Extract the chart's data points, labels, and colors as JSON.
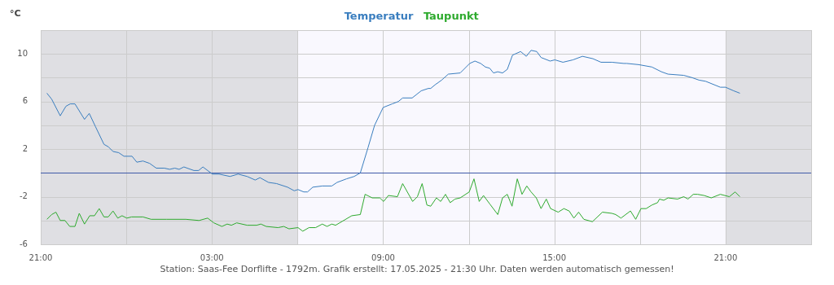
{
  "chart_data": {
    "type": "line",
    "ylabel": "°C",
    "annotations": [
      "Station: Saas-Fee Dorflifte - 1792m. Grafik erstellt: 17.05.2025 - 21:30 Uhr. Daten werden automatisch gemessen!"
    ],
    "xlim": [
      "2025-05-16T21:00",
      "2025-05-18T00:00"
    ],
    "xticks": [
      {
        "value": "2025-05-16T21:00",
        "label": "21:00"
      },
      {
        "value": "2025-05-17T00:00",
        "label": null
      },
      {
        "value": "2025-05-17T03:00",
        "label": "03:00"
      },
      {
        "value": "2025-05-17T06:00",
        "label": null
      },
      {
        "value": "2025-05-17T09:00",
        "label": "09:00"
      },
      {
        "value": "2025-05-17T12:00",
        "label": null
      },
      {
        "value": "2025-05-17T15:00",
        "label": "15:00"
      },
      {
        "value": "2025-05-17T18:00",
        "label": null
      },
      {
        "value": "2025-05-17T21:00",
        "label": "21:00"
      },
      {
        "value": "2025-05-18T00:00",
        "label": null
      }
    ],
    "ylim": [
      -6,
      12
    ],
    "yticks": [
      -6,
      {
        "value": -4,
        "label": null
      },
      -2,
      {
        "value": 0,
        "label": null
      },
      2,
      {
        "value": 4,
        "label": null
      },
      6,
      {
        "value": 8,
        "label": null
      },
      10,
      {
        "value": 12,
        "label": null
      }
    ],
    "grid": true,
    "legend": "top",
    "marker": "none",
    "line_style": "solid",
    "bands": [
      {
        "axis": "x",
        "from": "2025-05-16T21:00",
        "to": "2025-05-17T06:00",
        "color": "#dfdfe3"
      },
      {
        "axis": "x",
        "from": "2025-05-17T06:00",
        "to": "2025-05-17T21:00",
        "color": "#f9f8fe"
      },
      {
        "axis": "x",
        "from": "2025-05-17T21:00",
        "to": "2025-05-18T00:00",
        "color": "#dfdfe3"
      }
    ],
    "ref_lines": [
      {
        "axis": "y",
        "value": 0,
        "color": "#3f5aa8"
      }
    ],
    "series": [
      {
        "name": "Temperatur",
        "color": "#3a7ebf",
        "x": [
          "2025-05-16T21:13",
          "2025-05-16T21:23",
          "2025-05-16T21:41",
          "2025-05-16T21:53",
          "2025-05-16T22:02",
          "2025-05-16T22:12",
          "2025-05-16T22:32",
          "2025-05-16T22:42",
          "2025-05-16T22:55",
          "2025-05-16T23:13",
          "2025-05-16T23:22",
          "2025-05-16T23:32",
          "2025-05-16T23:44",
          "2025-05-16T23:55",
          "2025-05-17T00:12",
          "2025-05-17T00:22",
          "2025-05-17T00:35",
          "2025-05-17T00:49",
          "2025-05-17T01:03",
          "2025-05-17T01:20",
          "2025-05-17T01:31",
          "2025-05-17T01:42",
          "2025-05-17T01:51",
          "2025-05-17T02:01",
          "2025-05-17T02:22",
          "2025-05-17T02:32",
          "2025-05-17T02:41",
          "2025-05-17T02:51",
          "2025-05-17T03:01",
          "2025-05-17T03:15",
          "2025-05-17T03:38",
          "2025-05-17T03:55",
          "2025-05-17T04:14",
          "2025-05-17T04:31",
          "2025-05-17T04:41",
          "2025-05-17T04:59",
          "2025-05-17T05:16",
          "2025-05-17T05:39",
          "2025-05-17T05:53",
          "2025-05-17T06:01",
          "2025-05-17T06:13",
          "2025-05-17T06:21",
          "2025-05-17T06:32",
          "2025-05-17T06:52",
          "2025-05-17T07:12",
          "2025-05-17T07:23",
          "2025-05-17T07:43",
          "2025-05-17T07:59",
          "2025-05-17T08:12",
          "2025-05-17T08:28",
          "2025-05-17T08:42",
          "2025-05-17T09:00",
          "2025-05-17T09:19",
          "2025-05-17T09:32",
          "2025-05-17T09:41",
          "2025-05-17T10:01",
          "2025-05-17T10:20",
          "2025-05-17T10:35",
          "2025-05-17T10:40",
          "2025-05-17T10:49",
          "2025-05-17T11:03",
          "2025-05-17T11:17",
          "2025-05-17T11:42",
          "2025-05-17T12:02",
          "2025-05-17T12:13",
          "2025-05-17T12:25",
          "2025-05-17T12:35",
          "2025-05-17T12:44",
          "2025-05-17T12:52",
          "2025-05-17T13:01",
          "2025-05-17T13:11",
          "2025-05-17T13:21",
          "2025-05-17T13:32",
          "2025-05-17T13:49",
          "2025-05-17T14:01",
          "2025-05-17T14:11",
          "2025-05-17T14:23",
          "2025-05-17T14:32",
          "2025-05-17T14:51",
          "2025-05-17T15:01",
          "2025-05-17T15:18",
          "2025-05-17T15:39",
          "2025-05-17T15:59",
          "2025-05-17T16:21",
          "2025-05-17T16:38",
          "2025-05-17T17:01",
          "2025-05-17T17:26",
          "2025-05-17T17:32",
          "2025-05-17T17:57",
          "2025-05-17T18:25",
          "2025-05-17T18:45",
          "2025-05-17T18:59",
          "2025-05-17T19:32",
          "2025-05-17T19:50",
          "2025-05-17T20:04",
          "2025-05-17T20:18",
          "2025-05-17T20:49",
          "2025-05-17T21:00",
          "2025-05-17T21:17",
          "2025-05-17T21:30"
        ],
        "values": [
          6.7,
          6.2,
          4.8,
          5.6,
          5.8,
          5.8,
          4.5,
          5.0,
          3.9,
          2.4,
          2.2,
          1.8,
          1.7,
          1.4,
          1.4,
          0.9,
          1.0,
          0.8,
          0.4,
          0.4,
          0.3,
          0.4,
          0.3,
          0.5,
          0.2,
          0.2,
          0.5,
          0.2,
          -0.1,
          -0.1,
          -0.3,
          -0.1,
          -0.3,
          -0.6,
          -0.4,
          -0.8,
          -0.9,
          -1.2,
          -1.5,
          -1.4,
          -1.6,
          -1.6,
          -1.2,
          -1.1,
          -1.1,
          -0.8,
          -0.5,
          -0.3,
          0.0,
          2.1,
          4.0,
          5.5,
          5.8,
          6.0,
          6.3,
          6.3,
          6.9,
          7.1,
          7.1,
          7.4,
          7.8,
          8.3,
          8.4,
          9.2,
          9.4,
          9.2,
          8.9,
          8.8,
          8.4,
          8.5,
          8.4,
          8.7,
          9.9,
          10.2,
          9.8,
          10.3,
          10.2,
          9.7,
          9.4,
          9.5,
          9.3,
          9.5,
          9.8,
          9.6,
          9.3,
          9.3,
          9.2,
          9.2,
          9.1,
          8.9,
          8.5,
          8.3,
          8.2,
          8.0,
          7.8,
          7.7,
          7.2,
          7.2,
          6.9,
          6.7
        ]
      },
      {
        "name": "Taupunkt",
        "color": "#2eaa2e",
        "x": [
          "2025-05-16T21:13",
          "2025-05-16T21:23",
          "2025-05-16T21:32",
          "2025-05-16T21:41",
          "2025-05-16T21:51",
          "2025-05-16T22:01",
          "2025-05-16T22:12",
          "2025-05-16T22:21",
          "2025-05-16T22:32",
          "2025-05-16T22:43",
          "2025-05-16T22:53",
          "2025-05-16T23:03",
          "2025-05-16T23:13",
          "2025-05-16T23:22",
          "2025-05-16T23:32",
          "2025-05-16T23:42",
          "2025-05-16T23:51",
          "2025-05-17T00:01",
          "2025-05-17T00:11",
          "2025-05-17T00:35",
          "2025-05-17T00:52",
          "2025-05-17T01:25",
          "2025-05-17T02:05",
          "2025-05-17T02:33",
          "2025-05-17T02:51",
          "2025-05-17T03:04",
          "2025-05-17T03:21",
          "2025-05-17T03:32",
          "2025-05-17T03:41",
          "2025-05-17T03:52",
          "2025-05-17T04:14",
          "2025-05-17T04:34",
          "2025-05-17T04:43",
          "2025-05-17T04:54",
          "2025-05-17T05:19",
          "2025-05-17T05:31",
          "2025-05-17T05:42",
          "2025-05-17T06:01",
          "2025-05-17T06:11",
          "2025-05-17T06:24",
          "2025-05-17T06:38",
          "2025-05-17T06:52",
          "2025-05-17T07:02",
          "2025-05-17T07:12",
          "2025-05-17T07:20",
          "2025-05-17T07:37",
          "2025-05-17T07:54",
          "2025-05-17T08:12",
          "2025-05-17T08:22",
          "2025-05-17T08:37",
          "2025-05-17T08:53",
          "2025-05-17T09:01",
          "2025-05-17T09:11",
          "2025-05-17T09:30",
          "2025-05-17T09:41",
          "2025-05-17T10:02",
          "2025-05-17T10:12",
          "2025-05-17T10:22",
          "2025-05-17T10:32",
          "2025-05-17T10:40",
          "2025-05-17T10:52",
          "2025-05-17T11:01",
          "2025-05-17T11:11",
          "2025-05-17T11:21",
          "2025-05-17T11:31",
          "2025-05-17T11:42",
          "2025-05-17T12:01",
          "2025-05-17T12:11",
          "2025-05-17T12:22",
          "2025-05-17T12:31",
          "2025-05-17T12:44",
          "2025-05-17T13:01",
          "2025-05-17T13:11",
          "2025-05-17T13:21",
          "2025-05-17T13:31",
          "2025-05-17T13:42",
          "2025-05-17T13:52",
          "2025-05-17T14:02",
          "2025-05-17T14:11",
          "2025-05-17T14:22",
          "2025-05-17T14:32",
          "2025-05-17T14:43",
          "2025-05-17T14:52",
          "2025-05-17T15:08",
          "2025-05-17T15:20",
          "2025-05-17T15:31",
          "2025-05-17T15:41",
          "2025-05-17T15:51",
          "2025-05-17T16:02",
          "2025-05-17T16:20",
          "2025-05-17T16:41",
          "2025-05-17T17:01",
          "2025-05-17T17:09",
          "2025-05-17T17:20",
          "2025-05-17T17:40",
          "2025-05-17T17:51",
          "2025-05-17T18:02",
          "2025-05-17T18:13",
          "2025-05-17T18:25",
          "2025-05-17T18:37",
          "2025-05-17T18:41",
          "2025-05-17T18:50",
          "2025-05-17T18:59",
          "2025-05-17T19:19",
          "2025-05-17T19:32",
          "2025-05-17T19:41",
          "2025-05-17T19:52",
          "2025-05-17T20:01",
          "2025-05-17T20:15",
          "2025-05-17T20:30",
          "2025-05-17T20:49",
          "2025-05-17T21:08",
          "2025-05-17T21:20",
          "2025-05-17T21:30"
        ],
        "values": [
          -3.9,
          -3.5,
          -3.3,
          -4.0,
          -4.0,
          -4.5,
          -4.5,
          -3.4,
          -4.3,
          -3.6,
          -3.6,
          -3.0,
          -3.7,
          -3.7,
          -3.2,
          -3.8,
          -3.6,
          -3.8,
          -3.7,
          -3.7,
          -3.9,
          -3.9,
          -3.9,
          -4.0,
          -3.8,
          -4.2,
          -4.5,
          -4.3,
          -4.4,
          -4.2,
          -4.4,
          -4.4,
          -4.3,
          -4.5,
          -4.6,
          -4.5,
          -4.7,
          -4.6,
          -4.9,
          -4.6,
          -4.6,
          -4.3,
          -4.5,
          -4.3,
          -4.4,
          -4.0,
          -3.6,
          -3.5,
          -1.8,
          -2.1,
          -2.1,
          -2.4,
          -1.9,
          -2.0,
          -0.9,
          -2.4,
          -2.0,
          -0.9,
          -2.7,
          -2.8,
          -2.1,
          -2.4,
          -1.8,
          -2.5,
          -2.2,
          -2.1,
          -1.6,
          -0.5,
          -2.4,
          -1.9,
          -2.6,
          -3.5,
          -2.1,
          -1.8,
          -2.8,
          -0.5,
          -1.8,
          -1.1,
          -1.6,
          -2.1,
          -3.0,
          -2.2,
          -3.0,
          -3.3,
          -3.0,
          -3.2,
          -3.8,
          -3.3,
          -3.9,
          -4.1,
          -3.3,
          -3.4,
          -3.5,
          -3.8,
          -3.2,
          -3.9,
          -3.0,
          -3.0,
          -2.7,
          -2.5,
          -2.2,
          -2.3,
          -2.1,
          -2.2,
          -2.0,
          -2.2,
          -1.8,
          -1.8,
          -1.9,
          -2.1,
          -1.8,
          -2.0,
          -1.6,
          -2.0
        ]
      }
    ]
  }
}
